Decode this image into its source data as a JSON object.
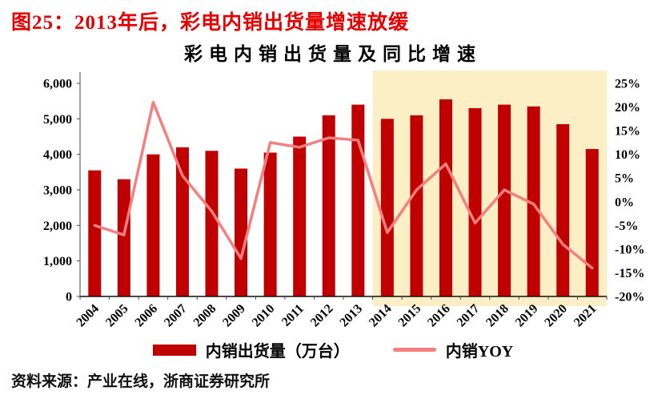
{
  "header": {
    "figure_title": "图25：2013年后，彩电内销出货量增速放缓"
  },
  "chart_data": {
    "type": "bar",
    "combo": "bar+line",
    "title": "彩电内销出货量及同比增速",
    "categories": [
      "2004",
      "2005",
      "2006",
      "2007",
      "2008",
      "2009",
      "2010",
      "2011",
      "2012",
      "2013",
      "2014",
      "2015",
      "2016",
      "2017",
      "2018",
      "2019",
      "2020",
      "2021"
    ],
    "series": [
      {
        "name": "内销出货量（万台）",
        "type": "bar",
        "axis": "left",
        "color": "#C00000",
        "values": [
          3550,
          3300,
          4000,
          4200,
          4100,
          3600,
          4050,
          4500,
          5100,
          5400,
          5000,
          5100,
          5550,
          5300,
          5400,
          5350,
          4850,
          4150
        ]
      },
      {
        "name": "内销YOY",
        "type": "line",
        "axis": "right",
        "color": "#F57F7F",
        "values": [
          -5,
          -7,
          21,
          5.5,
          -2,
          -12,
          12.5,
          11.5,
          13.5,
          13,
          -6.5,
          2.5,
          8,
          -4.5,
          2.5,
          -0.5,
          -9,
          -14
        ]
      }
    ],
    "left_axis": {
      "min": 0,
      "max": 6000,
      "step": 1000,
      "tick_labels": [
        "0",
        "1,000",
        "2,000",
        "3,000",
        "4,000",
        "5,000",
        "6,000"
      ]
    },
    "right_axis": {
      "min": -20,
      "max": 25,
      "step": 5,
      "tick_labels_top_down": [
        "25%",
        "20%",
        "15%",
        "10%",
        "5%",
        "0%",
        "-5%",
        "-10%",
        "-15%",
        "-20%"
      ]
    },
    "highlight": {
      "from_category": "2014",
      "to_category": "2021",
      "color": "#FCEEC5"
    },
    "legend_position": "bottom",
    "grid": false
  },
  "footer": {
    "source": "资料来源：产业在线，浙商证券研究所"
  }
}
